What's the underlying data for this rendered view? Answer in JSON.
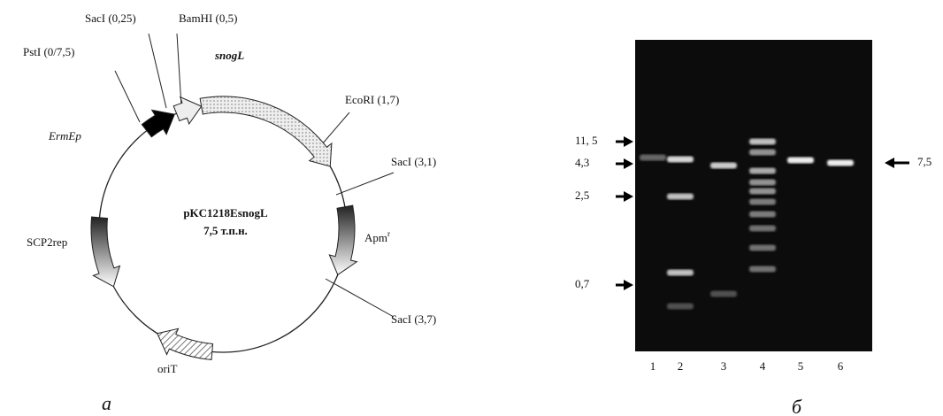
{
  "plasmid": {
    "name": "pKC1218EsnogL",
    "size": "7,5 т.п.н.",
    "sites": [
      "SacI (0,25)",
      "BamHI (0,5)",
      "PstI (0/7,5)",
      "EcoRI (1,7)",
      "SacI (3,1)",
      "SacI (3,7)"
    ],
    "genes": {
      "snogL": "snogL",
      "ermEp": "ErmEp",
      "apm": "Apm",
      "apm_sup": "r",
      "scp2rep": "SCP2rep",
      "orit": "oriT"
    },
    "panel": "а"
  },
  "gel": {
    "markers": [
      "11, 5",
      "4,3",
      "2,5",
      "0,7"
    ],
    "right_marker": "7,5",
    "lanes": [
      "1",
      "2",
      "3",
      "4",
      "5",
      "6"
    ],
    "panel": "б"
  }
}
